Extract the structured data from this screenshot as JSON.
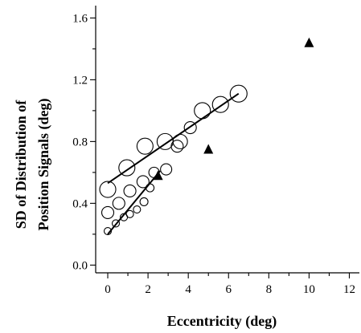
{
  "chart_data": {
    "type": "scatter",
    "title": "",
    "xlabel": "Eccentricity (deg)",
    "ylabel_lines": [
      "SD of Distribution of",
      "Position Signals (deg)"
    ],
    "xlim": [
      -0.6,
      12.5
    ],
    "ylim": [
      -0.05,
      1.68
    ],
    "x_ticks": [
      0,
      2,
      4,
      6,
      8,
      10,
      12
    ],
    "x_minor_ticks": [
      1,
      3,
      5,
      7,
      9,
      11
    ],
    "y_ticks": [
      0.0,
      0.4,
      0.8,
      1.2,
      1.6
    ],
    "y_tick_labels": [
      "0.0",
      "0.4",
      "0.8",
      "1.2",
      "1.6"
    ],
    "y_minor_ticks": [
      0.2,
      0.6,
      1.0,
      1.4
    ],
    "series": [
      {
        "marker": "circle",
        "points": [
          {
            "x": 0.0,
            "y": 0.49,
            "r": 10
          },
          {
            "x": 0.95,
            "y": 0.63,
            "r": 10
          },
          {
            "x": 1.85,
            "y": 0.77,
            "r": 10
          },
          {
            "x": 2.85,
            "y": 0.8,
            "r": 10
          },
          {
            "x": 3.6,
            "y": 0.8,
            "r": 9
          },
          {
            "x": 4.7,
            "y": 1.0,
            "r": 10
          },
          {
            "x": 5.6,
            "y": 1.04,
            "r": 10
          },
          {
            "x": 6.5,
            "y": 1.11,
            "r": 10.5
          },
          {
            "x": 0.0,
            "y": 0.34,
            "r": 7.5
          },
          {
            "x": 0.55,
            "y": 0.4,
            "r": 7.5
          },
          {
            "x": 1.1,
            "y": 0.48,
            "r": 7.5
          },
          {
            "x": 1.75,
            "y": 0.54,
            "r": 7.5
          },
          {
            "x": 2.3,
            "y": 0.6,
            "r": 6.5
          },
          {
            "x": 2.9,
            "y": 0.62,
            "r": 7
          },
          {
            "x": 3.45,
            "y": 0.77,
            "r": 7.5
          },
          {
            "x": 4.1,
            "y": 0.89,
            "r": 7.5
          },
          {
            "x": 0.0,
            "y": 0.22,
            "r": 4.5
          },
          {
            "x": 0.4,
            "y": 0.27,
            "r": 4.5
          },
          {
            "x": 0.8,
            "y": 0.31,
            "r": 4.5
          },
          {
            "x": 1.1,
            "y": 0.33,
            "r": 4.5
          },
          {
            "x": 1.45,
            "y": 0.36,
            "r": 4.5
          },
          {
            "x": 1.8,
            "y": 0.41,
            "r": 5
          },
          {
            "x": 2.1,
            "y": 0.5,
            "r": 5
          }
        ]
      },
      {
        "marker": "triangle",
        "points": [
          {
            "x": 2.5,
            "y": 0.58
          },
          {
            "x": 5.0,
            "y": 0.75
          },
          {
            "x": 10.0,
            "y": 1.44
          }
        ]
      }
    ],
    "fit_lines": [
      {
        "x1": 0.0,
        "y1": 0.53,
        "x2": 6.5,
        "y2": 1.11
      },
      {
        "x1": 0.0,
        "y1": 0.2,
        "x2": 2.6,
        "y2": 0.61
      }
    ]
  }
}
